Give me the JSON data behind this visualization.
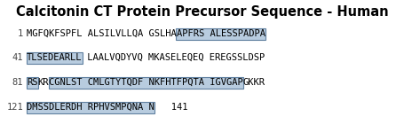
{
  "title": "Calcitonin CT Protein Precursor Sequence - Human",
  "background": "#ffffff",
  "rows": [
    {
      "line_num": "1",
      "segments": [
        {
          "text": "MGFQKFSPFL ALSILVLLQA GSLHA",
          "highlight": false
        },
        {
          "text": "APFRS ALESSPADPA",
          "highlight": true
        }
      ]
    },
    {
      "line_num": "41",
      "segments": [
        {
          "text": "TLSEDEARLL",
          "highlight": true
        },
        {
          "text": " LAALVQDYVQ MKASELEQEQ EREGSSLDSP",
          "highlight": false
        }
      ]
    },
    {
      "line_num": "81",
      "segments": [
        {
          "text": "RS",
          "highlight": true
        },
        {
          "text": "KR",
          "highlight": false
        },
        {
          "text": "CGNLST CMLGTYTQDF NKFHTFPQTA IGVGAP",
          "highlight": true
        },
        {
          "text": "GKKR",
          "highlight": false
        }
      ]
    },
    {
      "line_num": "121",
      "segments": [
        {
          "text": "DMSSDLERDH RPHVSMPQNA N",
          "highlight": true
        }
      ],
      "suffix": "   141"
    }
  ],
  "highlight_color": "#b8ccdf",
  "text_color": "#000000",
  "font_size": 7.5,
  "title_font_size": 10.5,
  "linenum_color": "#444444",
  "fig_width": 4.56,
  "fig_height": 1.58,
  "dpi": 100
}
